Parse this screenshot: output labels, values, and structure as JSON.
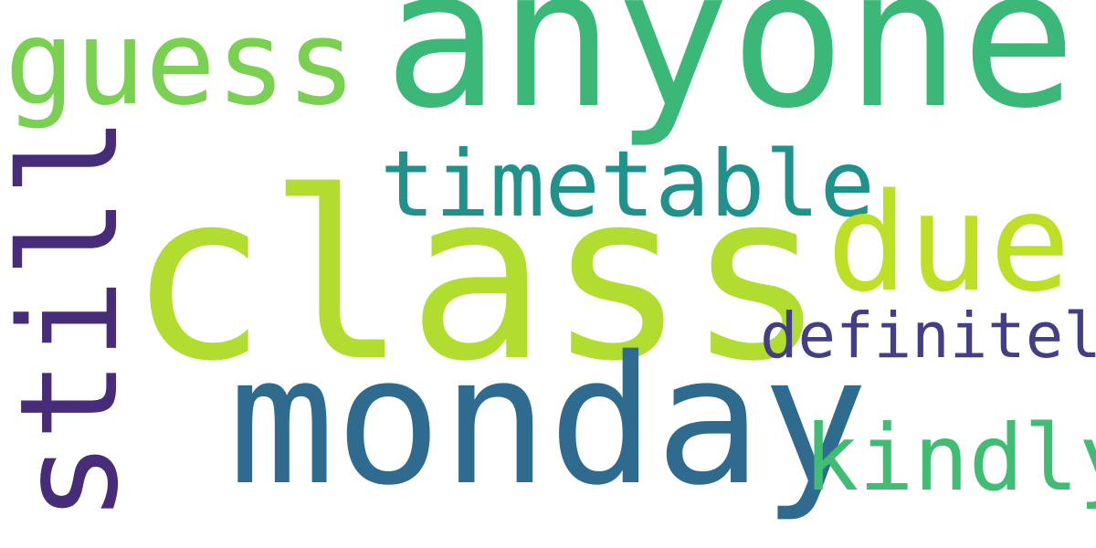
{
  "word_cloud": {
    "background": "#ffffff",
    "words": [
      {
        "key": "anyone",
        "text": "anyone",
        "color": "#3bb878"
      },
      {
        "key": "guess",
        "text": "guess",
        "color": "#7ad151"
      },
      {
        "key": "class",
        "text": "class",
        "color": "#b0dd2f"
      },
      {
        "key": "timetable",
        "text": "timetable",
        "color": "#21918c"
      },
      {
        "key": "due",
        "text": "due",
        "color": "#bddf26"
      },
      {
        "key": "definitely",
        "text": "definitely",
        "color": "#433e85"
      },
      {
        "key": "monday",
        "text": "monday",
        "color": "#2f6b8e"
      },
      {
        "key": "kindly",
        "text": "kindly",
        "color": "#40bd72"
      },
      {
        "key": "still",
        "text": "still",
        "color": "#472c7a"
      }
    ]
  }
}
